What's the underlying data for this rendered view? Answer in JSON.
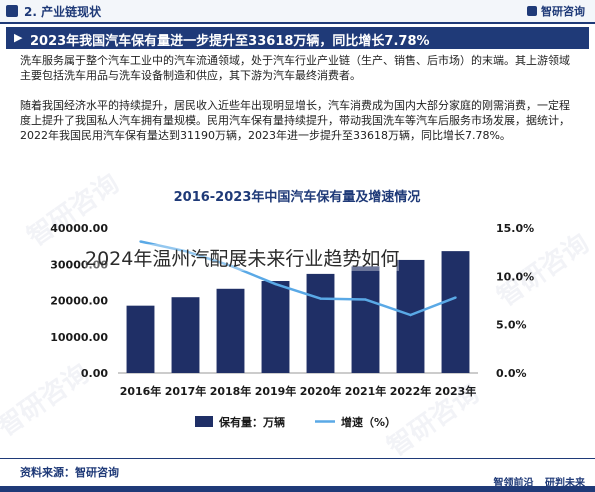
{
  "section": {
    "title": "2. 产业链现状",
    "brand": "智研咨询"
  },
  "headline": "2023年我国汽车保有量进一步提升至33618万辆，同比增长7.78%",
  "paragraphs": [
    "洗车服务属于整个汽车工业中的汽车流通领域，处于汽车行业产业链（生产、销售、后市场）的末端。其上游领域主要包括洗车用品与洗车设备制造和供应，其下游为汽车最终消费者。",
    "随着我国经济水平的持续提升，居民收入近些年出现明显增长，汽车消费成为国内大部分家庭的刚需消费，一定程度上提升了我国私人汽车拥有量规模。民用汽车保有量持续提升，带动我国洗车等汽车后服务市场发展，据统计，2022年我国民用汽车保有量达到31190万辆，2023年进一步提升至33618万辆，同比增长7.78%。"
  ],
  "overlay_caption": "2024年温州汽配展未来行业趋势如何",
  "watermark_text": "智研咨询",
  "footer": {
    "source": "资料来源：智研咨询",
    "brand1": "智领前沿",
    "brand2": "研判未来"
  },
  "colors": {
    "primary": "#1f3a78",
    "bar": "#1f2f66",
    "line": "#5aa9e6"
  },
  "chart_data": {
    "type": "bar",
    "title": "2016-2023年中国汽车保有量及增速情况",
    "categories": [
      "2016年",
      "2017年",
      "2018年",
      "2019年",
      "2020年",
      "2021年",
      "2022年",
      "2023年"
    ],
    "series": [
      {
        "name": "保有量：万辆",
        "type": "bar",
        "axis": "left",
        "values": [
          18574,
          20907,
          23231,
          25376,
          27340,
          29419,
          31190,
          33618
        ]
      },
      {
        "name": "增速（%）",
        "type": "line",
        "axis": "right",
        "values": [
          13.6,
          12.6,
          11.1,
          9.2,
          7.7,
          7.6,
          6.0,
          7.8
        ]
      }
    ],
    "yticks_left": [
      "0.00",
      "10000.00",
      "20000.00",
      "30000.00",
      "40000.00"
    ],
    "yticks_right": [
      "0.0%",
      "5.0%",
      "10.0%",
      "15.0%"
    ],
    "ylim_left": [
      0,
      40000
    ],
    "ylim_right": [
      0,
      15
    ],
    "legend_position": "bottom",
    "grid": false
  }
}
